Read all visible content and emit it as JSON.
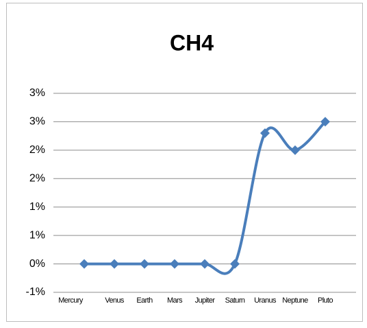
{
  "chart_data": {
    "type": "line",
    "title": "CH4",
    "categories": [
      "Mercury",
      "Venus",
      "Earth",
      "Mars",
      "Jupiter",
      "Saturn",
      "Uranus",
      "Neptune",
      "Pluto"
    ],
    "series": [
      {
        "name": "CH4",
        "color": "#4a7ebb",
        "values": [
          0,
          0,
          0,
          0,
          0,
          0,
          2.3,
          2.0,
          2.5
        ]
      }
    ],
    "ylim": [
      -0.5,
      3
    ],
    "yticks": [
      {
        "value": -0.5,
        "label": "-1%"
      },
      {
        "value": 0,
        "label": "0%"
      },
      {
        "value": 0.5,
        "label": "1%"
      },
      {
        "value": 1,
        "label": "1%"
      },
      {
        "value": 1.5,
        "label": "2%"
      },
      {
        "value": 2,
        "label": "2%"
      },
      {
        "value": 2.5,
        "label": "3%"
      },
      {
        "value": 3,
        "label": "3%"
      }
    ],
    "grid": true,
    "smooth": true
  }
}
